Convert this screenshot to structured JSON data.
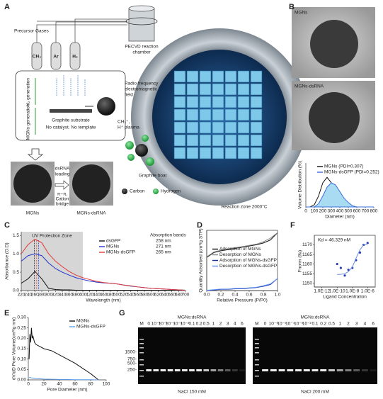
{
  "panel_labels": [
    "A",
    "B",
    "C",
    "D",
    "E",
    "F",
    "G"
  ],
  "panel_a": {
    "precursor": "Precursor Gases",
    "gases": [
      "CH₄",
      "Ar",
      "H₂"
    ],
    "chamber": [
      "PECVD reaction",
      "chamber"
    ],
    "h2_gen": "H₂ generation",
    "mgns_gen": "MGNs generation",
    "substrate": "Graphite substrate",
    "note": "No catalyst. No template",
    "rf": [
      "Radio frequency",
      "electromagnetic",
      "field"
    ],
    "plasma": [
      "CH₃⁺,",
      "H⁺ plasma"
    ],
    "boat": "Graphite boat",
    "carbon": "Carbon",
    "hydrogen": "Hydrogen",
    "zone": "Reaction zone 2000°C",
    "loading": [
      "dsRNA",
      "loading"
    ],
    "bridge": [
      "π−π,",
      "Cation",
      "bridge"
    ],
    "mgns": "MGNs",
    "mgns_dsrna": "MGNs-dsRNA"
  },
  "panel_b": {
    "top": "MGNs",
    "bottom": "MGNs-dsRNA"
  },
  "panel_g": {
    "markers": [
      "1500-",
      "750-",
      "500-",
      "250-"
    ],
    "gels": [
      {
        "title": "MGNs:dsRNA",
        "lanes": [
          "M",
          "0",
          "10⁻⁶",
          "10⁻⁵",
          "10⁻⁴",
          "10⁻³",
          "10⁻²",
          "0.1",
          "0.2",
          "0.5",
          "1",
          "2",
          "3",
          "4",
          "6"
        ],
        "condition": "NaCl 150 mM"
      },
      {
        "title": "MGNs:dsRNA",
        "lanes": [
          "M",
          "0",
          "10⁻⁶",
          "10⁻⁵",
          "10⁻⁴",
          "10⁻³",
          "10⁻²",
          "0.1",
          "0.2",
          "0.5",
          "1",
          "2",
          "3",
          "4",
          "6"
        ],
        "condition": "NaCl 200 mM"
      }
    ]
  },
  "chart_data": [
    {
      "type": "line",
      "xlabel": "Diameter (nm)",
      "ylabel": "Volume Distribution (%)",
      "x": [
        0,
        50,
        100,
        150,
        200,
        250,
        300,
        350,
        400,
        450,
        500,
        550,
        600,
        650,
        700,
        750,
        800
      ],
      "xlim": [
        0,
        800
      ],
      "xticks": [
        0,
        100,
        200,
        300,
        400,
        500,
        600,
        700,
        800
      ],
      "ylim": [
        0,
        40
      ],
      "yticks": [],
      "legend": "upper right",
      "series": [
        {
          "name": "MGNs (PDI=0.307)",
          "color": "#111111",
          "values": [
            0,
            0,
            2,
            10,
            22,
            27,
            22,
            12,
            4,
            1,
            0,
            0,
            0,
            0,
            0,
            0,
            0
          ]
        },
        {
          "name": "MGNs-dsGFP (PDI=0.252)",
          "color": "#3a6fd8",
          "fill": "#a9dcf2",
          "values": [
            0,
            0,
            0,
            3,
            10,
            18,
            22,
            20,
            14,
            8,
            4,
            1,
            0,
            0,
            0,
            0,
            0
          ]
        }
      ]
    },
    {
      "type": "line",
      "xlabel": "Wavelength (nm)",
      "ylabel": "Absorbance (O.D)",
      "zone": [
        220,
        400
      ],
      "zone_label": "UV Protection Zone",
      "legend": "upper right",
      "legend_title": "Absorption bands",
      "x": [
        220,
        240,
        260,
        280,
        300,
        320,
        340,
        360,
        380,
        400,
        420,
        440,
        460,
        480,
        500,
        520,
        540,
        560,
        580,
        600,
        620,
        640,
        660,
        680,
        700
      ],
      "xlim": [
        220,
        700
      ],
      "xticks": [
        220,
        240,
        260,
        280,
        300,
        320,
        340,
        360,
        380,
        400,
        420,
        440,
        460,
        480,
        500,
        520,
        540,
        560,
        580,
        600,
        620,
        640,
        660,
        680,
        700
      ],
      "ylim": [
        0,
        1.6
      ],
      "yticks": [
        {
          "value": 0,
          "label": "0.0"
        },
        0.5,
        {
          "value": 1,
          "label": "1.0"
        },
        1.5
      ],
      "series": [
        {
          "name": "dsGFP",
          "color": "#111111",
          "peak": 258,
          "peak_label": "258 nm",
          "values": [
            0.2,
            0.32,
            0.52,
            0.32,
            0.06,
            0.03,
            0.02,
            0.02,
            0.01,
            0.01,
            0.01,
            0.01,
            0.01,
            0.01,
            0.01,
            0.01,
            0.01,
            0.01,
            0.01,
            0.01,
            0.01,
            0.01,
            0.01,
            0.01,
            0.01
          ]
        },
        {
          "name": "MGNs",
          "color": "#2233cc",
          "peak": 271,
          "peak_label": "271 nm",
          "values": [
            0.8,
            0.95,
            1.0,
            0.95,
            0.75,
            0.6,
            0.5,
            0.42,
            0.35,
            0.3,
            0.26,
            0.23,
            0.21,
            0.2,
            0.18,
            0.15,
            0.12,
            0.1,
            0.08,
            0.06,
            0.05,
            0.04,
            0.03,
            0.02,
            0.01
          ]
        },
        {
          "name": "MGNs-dsGFP",
          "color": "#e23a3a",
          "peak": 265,
          "peak_label": "265 nm",
          "values": [
            1.0,
            1.25,
            1.4,
            1.3,
            1.0,
            0.8,
            0.65,
            0.52,
            0.42,
            0.35,
            0.3,
            0.25,
            0.22,
            0.2,
            0.18,
            0.15,
            0.13,
            0.1,
            0.08,
            0.06,
            0.05,
            0.04,
            0.03,
            0.02,
            0.01
          ]
        }
      ]
    },
    {
      "type": "line",
      "xlabel": "Relative Pressure (P/P0)",
      "ylabel": "Quantity Adsorbed (cm³/g STP)",
      "frame": true,
      "legend": "center right",
      "x": [
        0,
        0.1,
        0.2,
        0.3,
        0.4,
        0.5,
        0.6,
        0.7,
        0.8,
        0.9,
        1
      ],
      "xlim": [
        0,
        1
      ],
      "xticks": [
        {
          "value": 0,
          "label": "0.0"
        },
        0.2,
        0.4,
        0.6,
        0.8,
        {
          "value": 1,
          "label": "1.0"
        }
      ],
      "ylim": [
        0,
        100
      ],
      "yticks": [],
      "series": [
        {
          "name": "Adsorption of MGNs",
          "color": "#111111",
          "values": [
            55,
            63,
            66,
            68,
            70,
            72,
            74,
            76,
            79,
            84,
            96
          ]
        },
        {
          "name": "Desorption of MGNs",
          "color": "#888888",
          "values": [
            56,
            64,
            67,
            69,
            71,
            73,
            75,
            77,
            81,
            87,
            96
          ]
        },
        {
          "name": "Adsorption of MGNs-dsGFP",
          "color": "#1c2fa8",
          "values": [
            0,
            1,
            2,
            2,
            3,
            3,
            4,
            5,
            7,
            10,
            20
          ]
        },
        {
          "name": "Desorption of MGNs-dsGFP",
          "color": "#5b8ff0",
          "values": [
            0.5,
            1.5,
            2.5,
            2.5,
            3.5,
            3.5,
            4.5,
            5.5,
            8,
            11,
            20
          ]
        }
      ]
    },
    {
      "type": "line",
      "xlabel": "Pore Diameter (nm)",
      "ylabel": "dV/dD Pore Volume(cm³/g nm)",
      "legend": "upper right",
      "x": [
        1,
        2,
        3,
        4,
        5,
        6,
        8,
        10,
        15,
        20,
        30,
        40,
        50,
        60,
        80,
        90
      ],
      "xlim": [
        0,
        100
      ],
      "xticks": [
        0,
        20,
        40,
        60,
        80,
        100
      ],
      "ylim": [
        0,
        0.3
      ],
      "yticks": [
        {
          "value": 0,
          "label": "0.00"
        },
        0.05,
        {
          "value": 0.1,
          "label": "0.10"
        },
        0.15,
        {
          "value": 0.2,
          "label": "0.20"
        },
        0.25,
        {
          "value": 0.3,
          "label": "0.30"
        }
      ],
      "series": [
        {
          "name": "MGNs",
          "color": "#111111",
          "values": [
            0.1,
            0.22,
            0.18,
            0.25,
            0.2,
            0.21,
            0.18,
            0.17,
            0.16,
            0.15,
            0.14,
            0.12,
            0.1,
            0.08,
            0.03,
            0.0
          ]
        },
        {
          "name": "MGNs-dsGFP",
          "color": "#5b9be8",
          "values": [
            0.01,
            0.012,
            0.01,
            0.01,
            0.009,
            0.008,
            0.007,
            0.006,
            0.005,
            0.004,
            0.003,
            0.002,
            0.002,
            0.001,
            0.001,
            0.0
          ]
        }
      ]
    },
    {
      "type": "scatter",
      "xlabel": "Ligand Concentration",
      "ylabel": "Fnorm (‰)",
      "annotation": "Kd = 46.329 nM",
      "frame": true,
      "xlog": true,
      "x": [
        1e-10,
        3e-10,
        1e-09,
        3e-09,
        1e-08,
        3e-08,
        1e-07,
        3e-07,
        1e-06
      ],
      "xlim": [
        1e-13,
        1e-05
      ],
      "xticks": [
        {
          "value": 1e-12,
          "label": "1.0E-12"
        },
        {
          "value": 1e-10,
          "label": "1.0E-10"
        },
        {
          "value": 1e-08,
          "label": "1.0E-8"
        },
        {
          "value": 1e-06,
          "label": "1.0E-6"
        }
      ],
      "ylim": [
        1148,
        1175
      ],
      "yticks": [
        1150,
        1155,
        1160,
        1165,
        1170
      ],
      "series": [
        {
          "color": "#2a3fb0",
          "values": [
            1160,
            1158,
            1154,
            1157,
            1158,
            1162,
            1166,
            1170,
            1171
          ]
        },
        {
          "color": "#6b8fe0",
          "mode": "line",
          "values": [
            1154.5,
            1154.6,
            1155,
            1156,
            1158.5,
            1163,
            1167.5,
            1170,
            1170.5
          ]
        }
      ]
    }
  ]
}
